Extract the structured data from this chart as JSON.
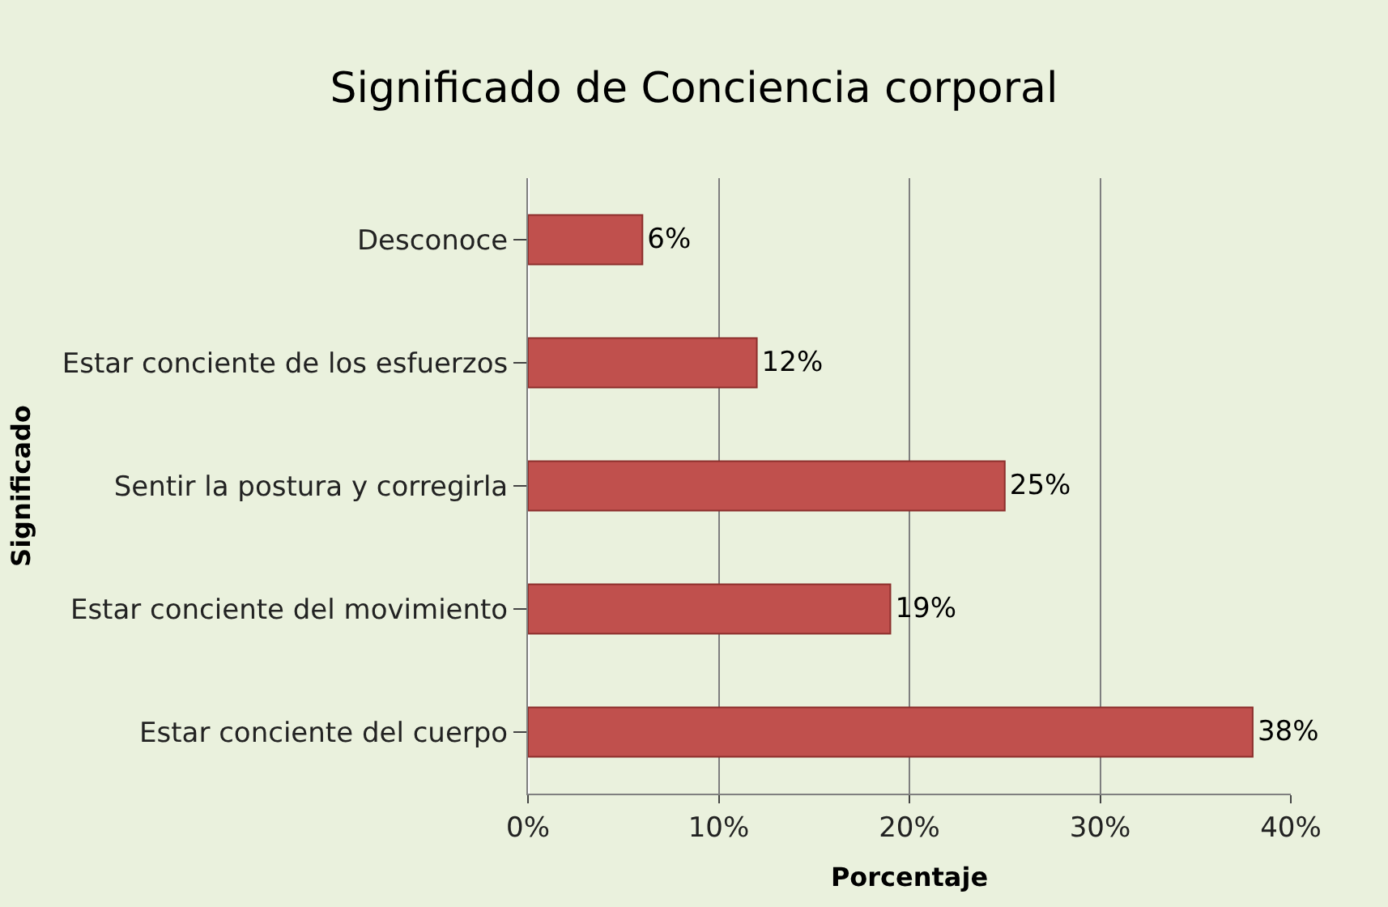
{
  "chart_data": {
    "type": "bar",
    "orientation": "horizontal",
    "title": "Significado de Conciencia corporal",
    "xlabel": "Porcentaje",
    "ylabel": "Significado",
    "categories": [
      "Desconoce",
      "Estar conciente de los esfuerzos",
      "Sentir la postura y corregirla",
      "Estar conciente del movimiento",
      "Estar conciente del cuerpo"
    ],
    "values": [
      6,
      12,
      25,
      19,
      38
    ],
    "value_labels": [
      "6%",
      "12%",
      "25%",
      "19%",
      "38%"
    ],
    "color": "#c0504d",
    "xlim": [
      0,
      40
    ],
    "xticks": [
      {
        "value": 0,
        "label": "0%"
      },
      {
        "value": 10,
        "label": "10%"
      },
      {
        "value": 20,
        "label": "20%"
      },
      {
        "value": 30,
        "label": "30%"
      },
      {
        "value": 40,
        "label": "40%"
      }
    ],
    "grid": "x",
    "legend": false
  }
}
